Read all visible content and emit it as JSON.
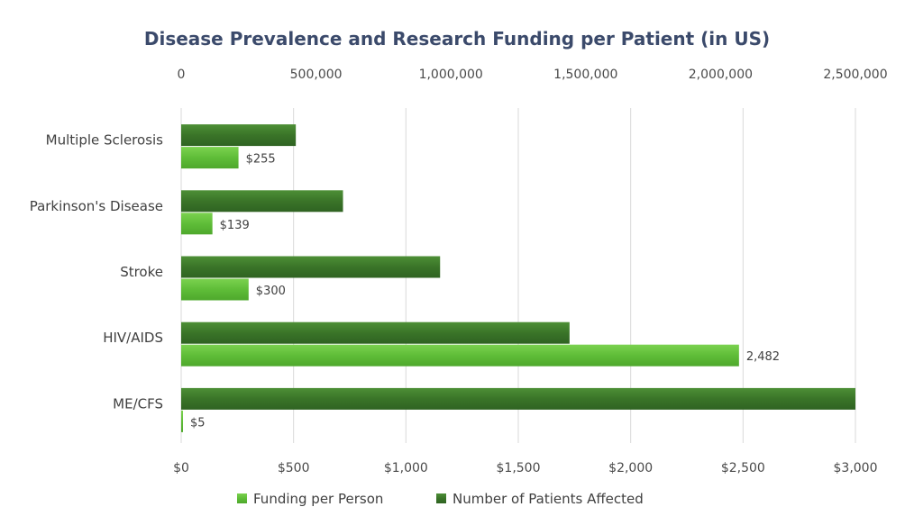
{
  "chart_data": {
    "type": "bar",
    "orientation": "horizontal",
    "title": "Disease Prevalence and Research Funding per Patient (in US)",
    "categories": [
      "Multiple Sclerosis",
      "Parkinson's Disease",
      "Stroke",
      "HIV/AIDS",
      "ME/CFS"
    ],
    "series": [
      {
        "name": "Number of Patients Affected",
        "axis": "top",
        "color": "#3d7a2a",
        "values": [
          425000,
          600000,
          960000,
          1440000,
          2500000
        ]
      },
      {
        "name": "Funding per Person",
        "axis": "bottom",
        "color": "#62bf3c",
        "values": [
          255,
          139,
          300,
          2482,
          5
        ],
        "labels": [
          "$255",
          "$139",
          "$300",
          "2,482",
          "$5"
        ]
      }
    ],
    "top_axis": {
      "range": [
        0,
        2500000
      ],
      "ticks": [
        0,
        500000,
        1000000,
        1500000,
        2000000,
        2500000
      ],
      "tick_labels": [
        "0",
        "500,000",
        "1,000,000",
        "1,500,000",
        "2,000,000",
        "2,500,000"
      ]
    },
    "bottom_axis": {
      "range": [
        0,
        3000
      ],
      "ticks": [
        0,
        500,
        1000,
        1500,
        2000,
        2500,
        3000
      ],
      "tick_labels": [
        "$0",
        "$500",
        "$1,000",
        "$1,500",
        "$2,000",
        "$2,500",
        "$3,000"
      ]
    },
    "grid": true,
    "legend_position": "bottom",
    "legend": [
      "Funding per Person",
      "Number of Patients Affected"
    ]
  }
}
